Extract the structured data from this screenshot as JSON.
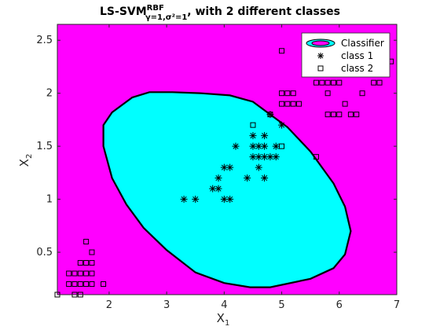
{
  "chart_data": {
    "type": "scatter",
    "title": {
      "main": "LS-SVM",
      "sup": "RBF",
      "sub": "γ=1,σ²=1",
      "rest": ", with 2 different classes"
    },
    "xlabel": {
      "base": "X",
      "sub": "1"
    },
    "ylabel": {
      "base": "X",
      "sub": "2"
    },
    "xlim": [
      1.1,
      7.0
    ],
    "ylim": [
      0.1,
      2.65
    ],
    "xticks": [
      "2",
      "3",
      "4",
      "5",
      "6",
      "7"
    ],
    "yticks": [
      "0.5",
      "1",
      "1.5",
      "2",
      "2.5"
    ],
    "grid": false,
    "legend_position": "top-right",
    "colors": {
      "background_region": "#ff00ff",
      "classifier_region": "#00ffff",
      "boundary": "#000000"
    },
    "legend": [
      {
        "label": "Classifier",
        "marker": "ellipse-contour"
      },
      {
        "label": "class 1",
        "marker": "asterisk"
      },
      {
        "label": "class 2",
        "marker": "square"
      }
    ],
    "classifier_boundary": [
      [
        2.4,
        1.96
      ],
      [
        2.7,
        2.01
      ],
      [
        3.1,
        2.01
      ],
      [
        3.6,
        2.0
      ],
      [
        4.1,
        1.98
      ],
      [
        4.5,
        1.92
      ],
      [
        4.8,
        1.8
      ],
      [
        5.1,
        1.68
      ],
      [
        5.5,
        1.45
      ],
      [
        5.9,
        1.15
      ],
      [
        6.1,
        0.93
      ],
      [
        6.2,
        0.7
      ],
      [
        6.1,
        0.48
      ],
      [
        5.9,
        0.35
      ],
      [
        5.5,
        0.25
      ],
      [
        4.8,
        0.17
      ],
      [
        4.45,
        0.17
      ],
      [
        4.0,
        0.21
      ],
      [
        3.5,
        0.31
      ],
      [
        3.0,
        0.52
      ],
      [
        2.6,
        0.73
      ],
      [
        2.3,
        0.95
      ],
      [
        2.05,
        1.2
      ],
      [
        1.9,
        1.5
      ],
      [
        1.9,
        1.7
      ],
      [
        2.05,
        1.82
      ],
      [
        2.4,
        1.96
      ]
    ],
    "series": [
      {
        "name": "class 1",
        "marker": "asterisk",
        "points": [
          [
            3.3,
            1.0
          ],
          [
            3.5,
            1.0
          ],
          [
            3.8,
            1.1
          ],
          [
            3.9,
            1.1
          ],
          [
            3.9,
            1.2
          ],
          [
            4.0,
            1.0
          ],
          [
            4.0,
            1.3
          ],
          [
            4.1,
            1.0
          ],
          [
            4.1,
            1.3
          ],
          [
            4.2,
            1.5
          ],
          [
            4.4,
            1.2
          ],
          [
            4.5,
            1.4
          ],
          [
            4.5,
            1.5
          ],
          [
            4.5,
            1.6
          ],
          [
            4.6,
            1.3
          ],
          [
            4.6,
            1.4
          ],
          [
            4.6,
            1.5
          ],
          [
            4.7,
            1.2
          ],
          [
            4.7,
            1.4
          ],
          [
            4.7,
            1.5
          ],
          [
            4.7,
            1.6
          ],
          [
            4.8,
            1.4
          ],
          [
            4.8,
            1.8
          ],
          [
            4.9,
            1.4
          ],
          [
            4.9,
            1.5
          ],
          [
            5.0,
            1.7
          ]
        ]
      },
      {
        "name": "class 2",
        "marker": "square",
        "points": [
          [
            1.1,
            0.1
          ],
          [
            1.4,
            0.1
          ],
          [
            1.5,
            0.1
          ],
          [
            1.3,
            0.2
          ],
          [
            1.4,
            0.2
          ],
          [
            1.5,
            0.2
          ],
          [
            1.6,
            0.2
          ],
          [
            1.7,
            0.2
          ],
          [
            1.9,
            0.2
          ],
          [
            1.3,
            0.3
          ],
          [
            1.4,
            0.3
          ],
          [
            1.5,
            0.3
          ],
          [
            1.6,
            0.3
          ],
          [
            1.7,
            0.3
          ],
          [
            1.5,
            0.4
          ],
          [
            1.6,
            0.4
          ],
          [
            1.7,
            0.4
          ],
          [
            1.7,
            0.5
          ],
          [
            1.6,
            0.6
          ],
          [
            4.8,
            1.8
          ],
          [
            4.5,
            1.7
          ],
          [
            5.0,
            1.5
          ],
          [
            5.6,
            1.4
          ],
          [
            5.0,
            1.9
          ],
          [
            5.1,
            1.9
          ],
          [
            5.2,
            1.9
          ],
          [
            5.3,
            1.9
          ],
          [
            5.0,
            2.0
          ],
          [
            5.1,
            2.0
          ],
          [
            5.2,
            2.0
          ],
          [
            5.8,
            1.8
          ],
          [
            5.8,
            2.0
          ],
          [
            5.9,
            1.8
          ],
          [
            6.0,
            1.8
          ],
          [
            6.2,
            1.8
          ],
          [
            6.3,
            1.8
          ],
          [
            6.1,
            1.9
          ],
          [
            6.4,
            2.0
          ],
          [
            6.0,
            2.1
          ],
          [
            6.6,
            2.1
          ],
          [
            6.7,
            2.1
          ],
          [
            5.6,
            2.1
          ],
          [
            5.7,
            2.1
          ],
          [
            5.8,
            2.1
          ],
          [
            5.9,
            2.1
          ],
          [
            6.9,
            2.3
          ],
          [
            6.8,
            2.3
          ],
          [
            6.7,
            2.3
          ],
          [
            6.1,
            2.4
          ],
          [
            5.0,
            2.4
          ],
          [
            6.3,
            2.5
          ],
          [
            6.1,
            2.5
          ],
          [
            5.7,
            2.5
          ]
        ]
      }
    ]
  }
}
